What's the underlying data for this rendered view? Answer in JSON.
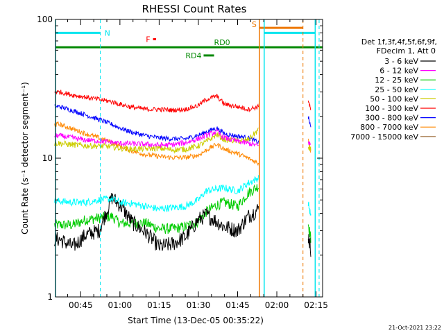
{
  "chart_data": {
    "type": "line",
    "title": "RHESSI Count Rates",
    "xlabel": "Start Time (13-Dec-05 00:35:22)",
    "ylabel": "Count Rate (s⁻¹ detector segment⁻¹)",
    "y_scale": "log",
    "ylim": [
      1,
      100
    ],
    "y_tick_labels": [
      "1",
      "10",
      "100"
    ],
    "xlim": [
      "00:35:22",
      "02:17:30"
    ],
    "x_tick_labels": [
      "00:45",
      "01:00",
      "01:15",
      "01:30",
      "01:45",
      "02:00",
      "02:15"
    ],
    "timestamp": "21-Oct-2021 23:22",
    "legend_header": [
      "Det 1f,3f,4f,5f,6f,9f,",
      "FDecim 1, Att 0"
    ],
    "series": [
      {
        "name": "3 - 6 keV",
        "color": "#000000",
        "x": [
          "00:37",
          "00:42",
          "00:47",
          "00:52",
          "00:57",
          "01:00",
          "01:05",
          "01:10",
          "01:15",
          "01:20",
          "01:25",
          "01:30",
          "01:33",
          "01:37",
          "01:40",
          "01:45",
          "01:49",
          "01:53"
        ],
        "values": [
          2.6,
          2.3,
          2.8,
          3.0,
          5.2,
          4.6,
          3.4,
          2.9,
          2.3,
          2.4,
          2.7,
          3.6,
          3.9,
          3.5,
          3.2,
          3.0,
          3.8,
          4.3
        ],
        "x_after": [
          "02:12",
          "02:13"
        ],
        "values_after": [
          2.8,
          2.2
        ]
      },
      {
        "name": "6 - 12 keV",
        "color": "#ff00ff",
        "x": [
          "00:37",
          "00:42",
          "00:47",
          "00:52",
          "00:57",
          "01:00",
          "01:05",
          "01:10",
          "01:15",
          "01:20",
          "01:25",
          "01:30",
          "01:33",
          "01:37",
          "01:40",
          "01:45",
          "01:49",
          "01:53"
        ],
        "values": [
          14.5,
          14.0,
          13.5,
          13.3,
          13.0,
          12.8,
          12.7,
          12.6,
          12.4,
          12.5,
          12.9,
          13.8,
          14.6,
          15.5,
          14.0,
          13.2,
          12.8,
          12.3
        ],
        "x_after": [
          "02:12",
          "02:13"
        ],
        "values_after": [
          13.0,
          12.5
        ]
      },
      {
        "name": "12 - 25 keV",
        "color": "#00cc00",
        "x": [
          "00:37",
          "00:42",
          "00:47",
          "00:52",
          "00:57",
          "01:00",
          "01:05",
          "01:10",
          "01:15",
          "01:20",
          "01:25",
          "01:30",
          "01:33",
          "01:37",
          "01:40",
          "01:45",
          "01:49",
          "01:53"
        ],
        "values": [
          3.3,
          3.3,
          3.6,
          3.7,
          3.8,
          3.4,
          3.4,
          3.4,
          3.1,
          3.1,
          3.2,
          3.5,
          4.1,
          4.6,
          4.8,
          4.5,
          5.6,
          6.3
        ],
        "x_after": [
          "02:12",
          "02:13"
        ],
        "values_after": [
          3.4,
          2.6
        ]
      },
      {
        "name": "25 - 50 keV",
        "color": "#00ffff",
        "x": [
          "00:37",
          "00:42",
          "00:47",
          "00:52",
          "00:57",
          "01:00",
          "01:05",
          "01:10",
          "01:15",
          "01:20",
          "01:25",
          "01:30",
          "01:33",
          "01:37",
          "01:40",
          "01:45",
          "01:49",
          "01:53"
        ],
        "values": [
          4.9,
          4.8,
          4.8,
          5.0,
          5.1,
          4.8,
          4.7,
          4.5,
          4.3,
          4.4,
          4.5,
          5.0,
          5.8,
          6.0,
          6.1,
          5.8,
          6.6,
          7.2
        ],
        "x_after": [
          "02:12",
          "02:13"
        ],
        "values_after": [
          4.8,
          3.8
        ]
      },
      {
        "name": "50 - 100 keV",
        "color": "#cccc00",
        "x": [
          "00:37",
          "00:42",
          "00:47",
          "00:52",
          "00:57",
          "01:00",
          "01:05",
          "01:10",
          "01:15",
          "01:20",
          "01:25",
          "01:30",
          "01:33",
          "01:37",
          "01:40",
          "01:45",
          "01:49",
          "01:53"
        ],
        "values": [
          12.8,
          12.5,
          12.3,
          12.2,
          12.1,
          11.8,
          11.6,
          11.7,
          11.8,
          11.5,
          11.6,
          12.3,
          13.1,
          14.8,
          13.6,
          13.3,
          13.5,
          16.0
        ],
        "x_after": [
          "02:12",
          "02:13"
        ],
        "values_after": [
          12.0,
          11.5
        ]
      },
      {
        "name": "100 - 300 keV",
        "color": "#ff0000",
        "x": [
          "00:37",
          "00:42",
          "00:47",
          "00:52",
          "00:57",
          "01:00",
          "01:05",
          "01:10",
          "01:15",
          "01:20",
          "01:25",
          "01:30",
          "01:33",
          "01:37",
          "01:40",
          "01:45",
          "01:49",
          "01:53"
        ],
        "values": [
          30.0,
          28.5,
          27.5,
          26.5,
          25.5,
          24.5,
          23.2,
          22.5,
          22.5,
          22.2,
          22.5,
          24.0,
          26.5,
          28.0,
          24.5,
          23.5,
          22.5,
          23.5
        ],
        "x_after": [
          "02:12",
          "02:13"
        ],
        "values_after": [
          26.5,
          22.0
        ]
      },
      {
        "name": "300 - 800 keV",
        "color": "#0000ff",
        "x": [
          "00:37",
          "00:42",
          "00:47",
          "00:52",
          "00:57",
          "01:00",
          "01:05",
          "01:10",
          "01:15",
          "01:20",
          "01:25",
          "01:30",
          "01:33",
          "01:37",
          "01:40",
          "01:45",
          "01:49",
          "01:53"
        ],
        "values": [
          23.5,
          22.0,
          20.5,
          19.0,
          17.5,
          16.5,
          15.3,
          14.5,
          14.0,
          13.8,
          13.8,
          14.6,
          15.5,
          16.5,
          15.0,
          14.4,
          14.0,
          13.0
        ],
        "x_after": [
          "02:12",
          "02:13"
        ],
        "values_after": [
          20.0,
          16.5
        ]
      },
      {
        "name": "800 - 7000 keV",
        "color": "#ff8800",
        "x": [
          "00:37",
          "00:42",
          "00:47",
          "00:52",
          "00:57",
          "01:00",
          "01:05",
          "01:10",
          "01:15",
          "01:20",
          "01:25",
          "01:30",
          "01:33",
          "01:37",
          "01:40",
          "01:45",
          "01:49",
          "01:53"
        ],
        "values": [
          17.5,
          16.2,
          15.0,
          14.0,
          13.0,
          12.2,
          11.2,
          10.6,
          10.3,
          10.1,
          10.1,
          10.5,
          11.4,
          12.6,
          11.6,
          10.8,
          10.0,
          9.2
        ],
        "x_after": [
          "02:12",
          "02:13"
        ],
        "values_after": [
          14.0,
          11.0
        ]
      },
      {
        "name": "7000 - 15000 keV",
        "color": "#996633",
        "x": [],
        "values": []
      }
    ],
    "annotations": [
      {
        "label": "N",
        "color": "#00e5ee",
        "bar_x": [
          "00:35:22",
          "00:52:30"
        ],
        "bar_y": 80,
        "dashed_lines_at": [
          "00:52:30"
        ],
        "solid_lines_at": [
          "00:35:22"
        ]
      },
      {
        "label": "F",
        "color": "#ff0000",
        "bar_x": [
          "01:12:40",
          "01:13:50"
        ],
        "bar_y": 72
      },
      {
        "label": "RD0",
        "color": "#008800",
        "bar_x": [
          "00:35:22",
          "02:17:30"
        ],
        "bar_y": 63
      },
      {
        "label": "RD4",
        "color": "#008800",
        "bar_x": [
          "01:32:00",
          "01:36:00"
        ],
        "bar_y": 55
      },
      {
        "label": "S",
        "color": "#ee7700",
        "bar_x": [
          "01:53:20",
          "02:10:00"
        ],
        "bar_y": 87,
        "solid_lines_at": [
          "01:53:20"
        ],
        "dashed_lines_at": [
          "02:10:00"
        ]
      },
      {
        "label": "",
        "color": "#00e5ee",
        "bar_x": [
          "01:55:10",
          "02:14:40"
        ],
        "bar_y": 80,
        "solid_lines_at": [
          "01:55:10",
          "02:14:40"
        ],
        "dashed_lines_at": [
          "02:16:10"
        ]
      }
    ]
  }
}
